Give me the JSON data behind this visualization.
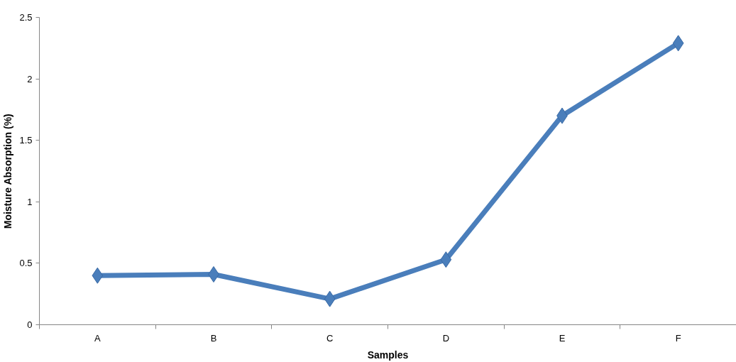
{
  "chart_data": {
    "type": "line",
    "xlabel": "Samples",
    "ylabel": "Moisture Absorption (%)",
    "categories": [
      "A",
      "B",
      "C",
      "D",
      "E",
      "F"
    ],
    "series": [
      {
        "color": "#4a7ebb",
        "values": [
          0.4,
          0.41,
          0.21,
          0.53,
          1.7,
          2.29
        ]
      }
    ],
    "ylim": [
      0,
      2.5
    ],
    "yticks": [
      0,
      0.5,
      1,
      1.5,
      2,
      2.5
    ],
    "grid": false,
    "marker": "diamond",
    "line_style": "solid"
  }
}
